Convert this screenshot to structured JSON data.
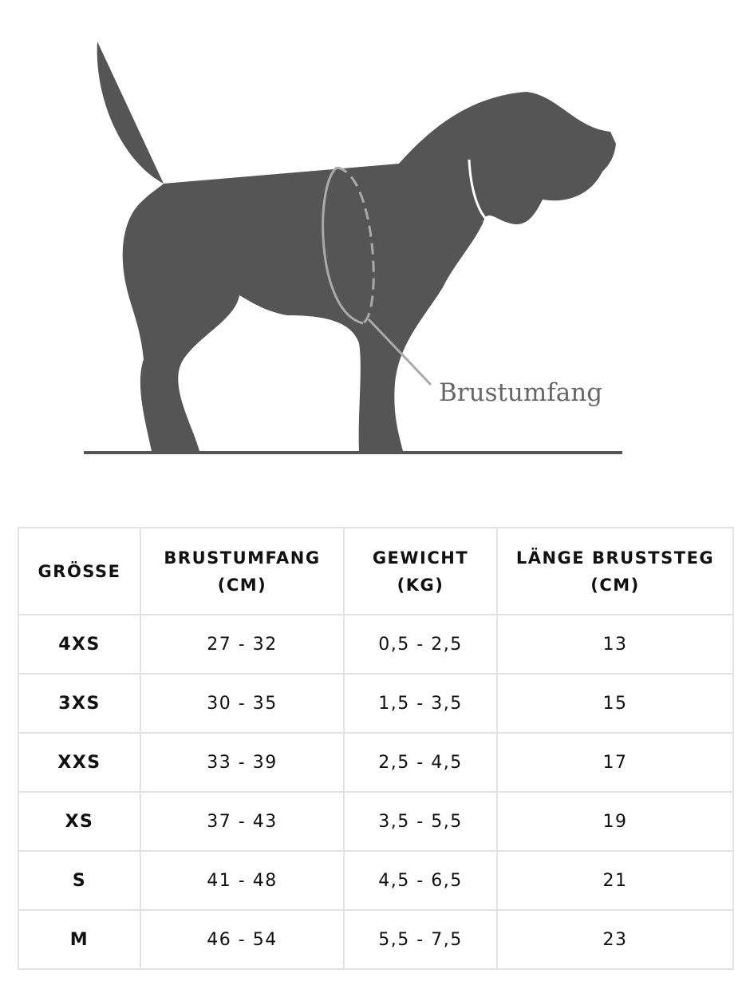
{
  "illustration": {
    "label": "Brustumfang"
  },
  "table": {
    "headers": [
      [
        "GRÖSSE"
      ],
      [
        "BRUSTUMFANG",
        "(CM)"
      ],
      [
        "GEWICHT",
        "(KG)"
      ],
      [
        "LÄNGE BRUSTSTEG",
        "(CM)"
      ]
    ],
    "rows": [
      [
        "4XS",
        "27 - 32",
        "0,5 - 2,5",
        "13"
      ],
      [
        "3XS",
        "30 - 35",
        "1,5 - 3,5",
        "15"
      ],
      [
        "XXS",
        "33 - 39",
        "2,5 - 4,5",
        "17"
      ],
      [
        "XS",
        "37 - 43",
        "3,5 - 5,5",
        "19"
      ],
      [
        "S",
        "41 - 48",
        "4,5 - 6,5",
        "21"
      ],
      [
        "M",
        "46 - 54",
        "5,5 - 7,5",
        "23"
      ]
    ]
  }
}
